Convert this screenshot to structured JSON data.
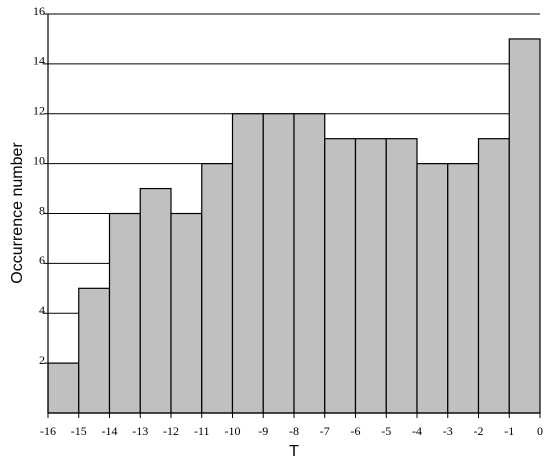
{
  "chart_data": {
    "type": "histogram",
    "xlabel": "T",
    "ylabel": "Occurrence number",
    "bins": [
      -16,
      -15,
      -14,
      -13,
      -12,
      -11,
      -10,
      -9,
      -8,
      -7,
      -6,
      -5,
      -4,
      -3,
      -2,
      -1,
      0
    ],
    "values": [
      2,
      5,
      8,
      9,
      8,
      10,
      12,
      12,
      12,
      11,
      11,
      11,
      10,
      10,
      11,
      15
    ],
    "color": "#c0c0c0",
    "xlim": [
      -16,
      0
    ],
    "xticks": [
      -16,
      -15,
      -14,
      -13,
      -12,
      -11,
      -10,
      -9,
      -8,
      -7,
      -6,
      -5,
      -4,
      -3,
      -2,
      -1,
      0
    ],
    "ylim": [
      0,
      16
    ],
    "yticks": [
      2,
      4,
      6,
      8,
      10,
      12,
      14,
      16
    ],
    "grid": true
  }
}
